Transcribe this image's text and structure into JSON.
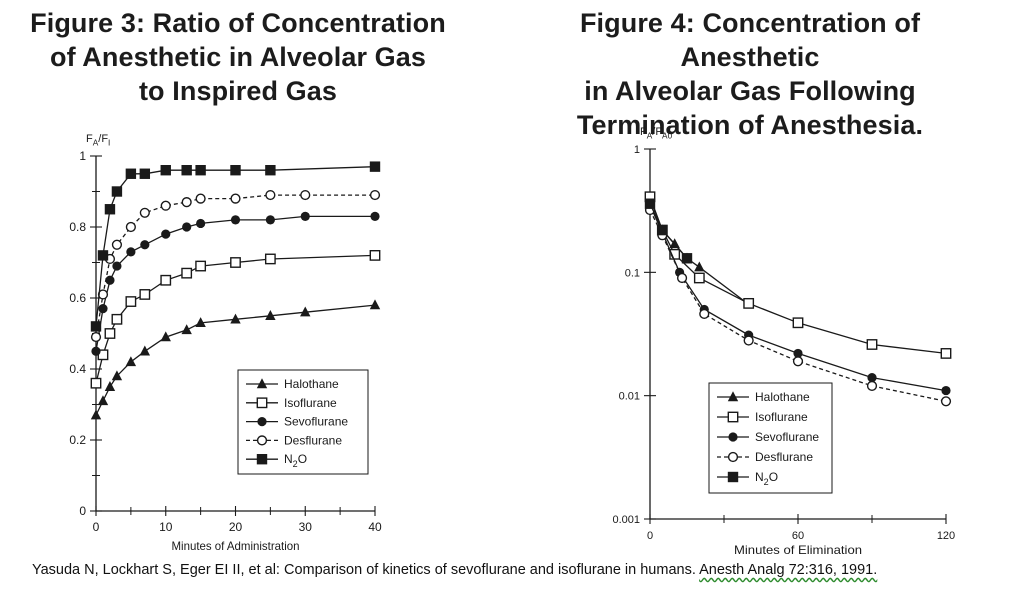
{
  "figures": [
    {
      "title": "Figure 3: Ratio of Concentration of Anesthetic in Alveolar Gas to Inspired Gas",
      "title_lines": [
        "Figure 3: Ratio of Concentration",
        "of Anesthetic in Alveolar Gas",
        "to Inspired Gas"
      ]
    },
    {
      "title": "Figure 4: Concentration of Anesthetic in Alveolar Gas Following Termination of Anesthesia.",
      "title_lines": [
        "Figure 4: Concentration of Anesthetic",
        "in Alveolar Gas Following",
        "Termination of Anesthesia."
      ]
    }
  ],
  "legend_labels": [
    "Halothane",
    "Isoflurane",
    "Sevoflurane",
    "Desflurane",
    "N2O"
  ],
  "chart_data": [
    {
      "type": "line",
      "title": "Figure 3: Ratio of Concentration of Anesthetic in Alveolar Gas to Inspired Gas",
      "xlabel": "Minutes of Administration",
      "ylabel": "FA/FI",
      "xlim": [
        0,
        40
      ],
      "ylim": [
        0,
        1
      ],
      "xticks": [
        0,
        10,
        20,
        30,
        40
      ],
      "yticks": [
        0,
        0.2,
        0.4,
        0.6,
        0.8,
        1
      ],
      "ytick_labels": [
        "0",
        "0.2",
        "0.4",
        "0.6",
        "0.8",
        "1"
      ],
      "legend_position": "bottom-right",
      "series": [
        {
          "name": "Halothane",
          "marker": "triangle",
          "dash": false,
          "x": [
            0,
            1,
            2,
            3,
            5,
            7,
            10,
            13,
            15,
            20,
            25,
            30,
            40
          ],
          "y": [
            0.27,
            0.31,
            0.35,
            0.38,
            0.42,
            0.45,
            0.49,
            0.51,
            0.53,
            0.54,
            0.55,
            0.56,
            0.58
          ]
        },
        {
          "name": "Isoflurane",
          "marker": "open-square",
          "dash": false,
          "x": [
            0,
            1,
            2,
            3,
            5,
            7,
            10,
            13,
            15,
            20,
            25,
            40
          ],
          "y": [
            0.36,
            0.44,
            0.5,
            0.54,
            0.59,
            0.61,
            0.65,
            0.67,
            0.69,
            0.7,
            0.71,
            0.72
          ]
        },
        {
          "name": "Sevoflurane",
          "marker": "filled-circle",
          "dash": false,
          "x": [
            0,
            1,
            2,
            3,
            5,
            7,
            10,
            13,
            15,
            20,
            25,
            30,
            40
          ],
          "y": [
            0.45,
            0.57,
            0.65,
            0.69,
            0.73,
            0.75,
            0.78,
            0.8,
            0.81,
            0.82,
            0.82,
            0.83,
            0.83
          ]
        },
        {
          "name": "Desflurane",
          "marker": "open-circle",
          "dash": true,
          "x": [
            0,
            1,
            2,
            3,
            5,
            7,
            10,
            13,
            15,
            20,
            25,
            30,
            40
          ],
          "y": [
            0.49,
            0.61,
            0.71,
            0.75,
            0.8,
            0.84,
            0.86,
            0.87,
            0.88,
            0.88,
            0.89,
            0.89,
            0.89
          ]
        },
        {
          "name": "N2O",
          "marker": "filled-square",
          "dash": false,
          "x": [
            0,
            1,
            2,
            3,
            5,
            7,
            10,
            13,
            15,
            20,
            25,
            40
          ],
          "y": [
            0.52,
            0.72,
            0.85,
            0.9,
            0.95,
            0.95,
            0.96,
            0.96,
            0.96,
            0.96,
            0.96,
            0.97
          ]
        }
      ]
    },
    {
      "type": "line",
      "title": "Figure 4: Concentration of Anesthetic in Alveolar Gas Following Termination of Anesthesia.",
      "xlabel": "Minutes of Elimination",
      "ylabel": "FA/FA0",
      "xlim": [
        0,
        120
      ],
      "ylim": [
        0.001,
        1
      ],
      "y_scale": "log",
      "xticks": [
        0,
        60,
        120
      ],
      "yticks": [
        0.001,
        0.01,
        0.1,
        1
      ],
      "ytick_labels": [
        "0.001",
        "0.01",
        "0.1",
        "1"
      ],
      "legend_position": "bottom-right",
      "series": [
        {
          "name": "Halothane",
          "marker": "triangle",
          "dash": false,
          "x": [
            0,
            5,
            10,
            15,
            20,
            40
          ],
          "y": [
            0.4,
            0.22,
            0.17,
            0.13,
            0.11,
            0.055
          ]
        },
        {
          "name": "Isoflurane",
          "marker": "open-square",
          "dash": false,
          "x": [
            0,
            5,
            10,
            20,
            40,
            60,
            90,
            120
          ],
          "y": [
            0.41,
            0.22,
            0.14,
            0.09,
            0.056,
            0.039,
            0.026,
            0.022
          ]
        },
        {
          "name": "Sevoflurane",
          "marker": "filled-circle",
          "dash": false,
          "x": [
            0,
            5,
            12,
            22,
            40,
            60,
            90,
            120
          ],
          "y": [
            0.35,
            0.21,
            0.1,
            0.05,
            0.031,
            0.022,
            0.014,
            0.011
          ]
        },
        {
          "name": "Desflurane",
          "marker": "open-circle",
          "dash": true,
          "x": [
            0,
            5,
            13,
            22,
            40,
            60,
            90,
            120
          ],
          "y": [
            0.32,
            0.2,
            0.09,
            0.046,
            0.028,
            0.019,
            0.012,
            0.009
          ]
        },
        {
          "name": "N2O",
          "marker": "filled-square",
          "dash": false,
          "x": [
            0,
            5,
            15
          ],
          "y": [
            0.36,
            0.22,
            0.13
          ]
        }
      ]
    }
  ],
  "citation": {
    "text": "Yasuda N, Lockhart S, Eger EI II, et al: Comparison of kinetics of sevoflurane and isoflurane in humans.",
    "journal": "Anesth Analg 72:316, 1991."
  },
  "colors": {
    "ink": "#1a1a1a",
    "background": "#ffffff"
  }
}
